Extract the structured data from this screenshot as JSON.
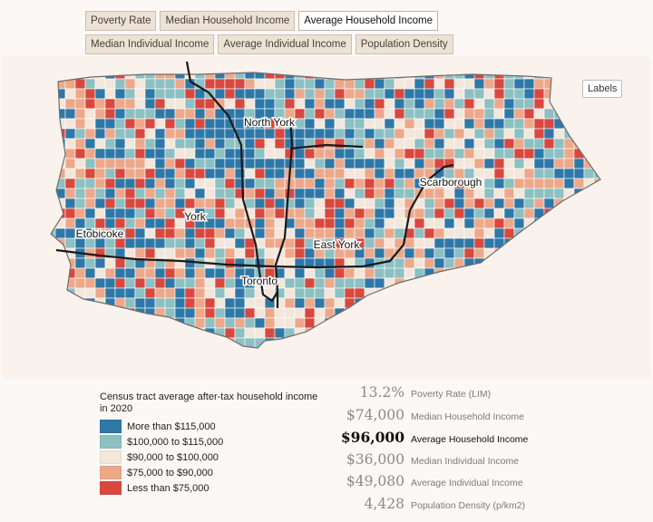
{
  "tabs": {
    "row1": [
      {
        "label": "Poverty Rate",
        "active": false
      },
      {
        "label": "Median Household Income",
        "active": false
      },
      {
        "label": "Average Household Income",
        "active": true
      }
    ],
    "row2": [
      {
        "label": "Median Individual Income",
        "active": false
      },
      {
        "label": "Average Individual Income",
        "active": false
      },
      {
        "label": "Population Density",
        "active": false
      }
    ]
  },
  "labels_button": "Labels",
  "map": {
    "region_labels": [
      "North York",
      "Scarborough",
      "York",
      "Etobicoke",
      "East York",
      "Toronto"
    ],
    "colors": {
      "more_than_115k": "#2e78a8",
      "100k_115k": "#8cc0c2",
      "90k_100k": "#f3e6db",
      "75k_90k": "#eda88a",
      "less_than_75k": "#d9483e",
      "transit": "#1a1a1a"
    }
  },
  "legend": {
    "title": "Census tract average after-tax household income in 2020",
    "items": [
      {
        "label": "More than $115,000",
        "color": "#2e78a8"
      },
      {
        "label": "$100,000 to $115,000",
        "color": "#8cc0c2"
      },
      {
        "label": "$90,000 to $100,000",
        "color": "#f3e6db"
      },
      {
        "label": "$75,000 to $90,000",
        "color": "#eda88a"
      },
      {
        "label": "Less than $75,000",
        "color": "#d9483e"
      }
    ]
  },
  "stats": [
    {
      "value": "13.2%",
      "label": "Poverty Rate (LIM)",
      "active": false
    },
    {
      "value": "$74,000",
      "label": "Median Household Income",
      "active": false
    },
    {
      "value": "$96,000",
      "label": "Average Household Income",
      "active": true
    },
    {
      "value": "$36,000",
      "label": "Median Individual Income",
      "active": false
    },
    {
      "value": "$49,080",
      "label": "Average Individual Income",
      "active": false
    },
    {
      "value": "4,428",
      "label": "Population Density (p/km2)",
      "active": false
    }
  ]
}
